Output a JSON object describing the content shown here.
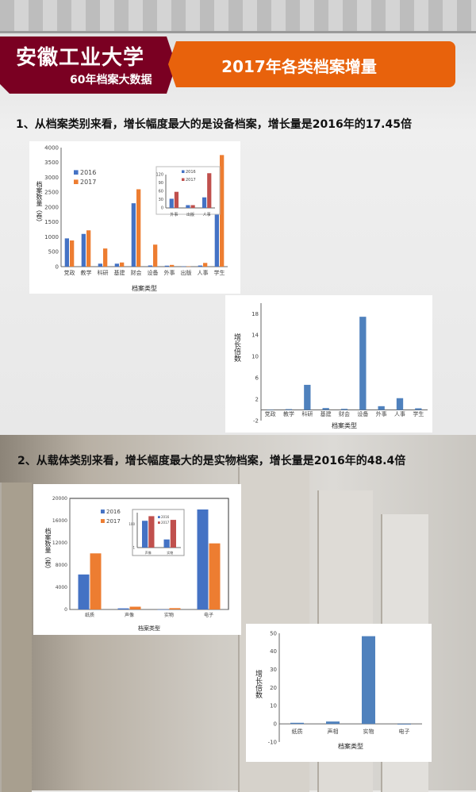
{
  "header": {
    "university": "安徽工业大学",
    "subtitle": "60年档案大数据",
    "title": "2017年各类档案增量"
  },
  "sections": [
    {
      "text": "1、从档案类别来看，增长幅度最大的是设备档案，增长量是2016年的17.45倍"
    },
    {
      "text": "2、从载体类别来看，增长幅度最大的是实物档案，增长量是2016年的48.4倍"
    }
  ],
  "colors": {
    "header_dark": "#7a0022",
    "header_orange": "#e8620c",
    "s2016": "#4472c4",
    "s2017": "#ed7d31",
    "inset2017": "#c0504d",
    "growth": "#4f81bd"
  },
  "chart_data": [
    {
      "type": "bar",
      "xlabel": "档案类型",
      "ylabel": "档案数量（卷）",
      "ylim": [
        0,
        4000
      ],
      "yticks": [
        0,
        500,
        1000,
        1500,
        2000,
        2500,
        3000,
        3500,
        4000
      ],
      "legend": "top-left",
      "categories": [
        "党政",
        "教学",
        "科研",
        "基建",
        "财会",
        "设备",
        "外事",
        "出版",
        "人事",
        "学生"
      ],
      "series": [
        {
          "name": "2016",
          "values": [
            950,
            1100,
            100,
            100,
            2130,
            40,
            33,
            10,
            38,
            2800
          ]
        },
        {
          "name": "2017",
          "values": [
            880,
            1220,
            610,
            140,
            2600,
            740,
            58,
            10,
            125,
            3750
          ]
        }
      ],
      "inset": {
        "type": "bar",
        "ylim": [
          0,
          120
        ],
        "yticks": [
          0,
          30,
          60,
          90,
          120
        ],
        "categories": [
          "外事",
          "出版",
          "人事"
        ],
        "series": [
          {
            "name": "2016",
            "values": [
              33,
              10,
              38
            ]
          },
          {
            "name": "2017",
            "values": [
              58,
              10,
              125
            ]
          }
        ]
      }
    },
    {
      "type": "bar",
      "xlabel": "档案类型",
      "ylabel": "增长倍数",
      "ylim": [
        -2,
        20
      ],
      "yticks": [
        -2,
        2,
        6,
        10,
        14,
        18
      ],
      "categories": [
        "党政",
        "教学",
        "科研",
        "基建",
        "财会",
        "设备",
        "外事",
        "人事",
        "学生"
      ],
      "values": [
        -0.07,
        0.15,
        4.7,
        0.35,
        0.2,
        17.45,
        0.7,
        2.2,
        0.3
      ]
    },
    {
      "type": "bar",
      "xlabel": "档案类型",
      "ylabel": "档案数量（卷）",
      "ylim": [
        0,
        20000
      ],
      "yticks": [
        0,
        4000,
        8000,
        12000,
        16000,
        20000
      ],
      "legend": "top-left",
      "categories": [
        "纸质",
        "声像",
        "实物",
        "电子"
      ],
      "series": [
        {
          "name": "2016",
          "values": [
            6300,
            200,
            5,
            18000
          ]
        },
        {
          "name": "2017",
          "values": [
            10100,
            500,
            240,
            11900
          ]
        }
      ],
      "inset": {
        "type": "bar",
        "scale": "log",
        "ylim": [
          1,
          1000
        ],
        "yticks": [
          1,
          100
        ],
        "categories": [
          "声像",
          "实物"
        ],
        "series": [
          {
            "name": "2016",
            "values": [
              200,
              5
            ]
          },
          {
            "name": "2017",
            "values": [
              500,
              240
            ]
          }
        ]
      }
    },
    {
      "type": "bar",
      "xlabel": "档案类型",
      "ylabel": "增长倍数",
      "ylim": [
        -10,
        50
      ],
      "yticks": [
        -10,
        0,
        10,
        20,
        30,
        40,
        50
      ],
      "categories": [
        "纸质",
        "声相",
        "实物",
        "电子"
      ],
      "values": [
        0.6,
        1.3,
        48.4,
        -0.35
      ]
    }
  ]
}
